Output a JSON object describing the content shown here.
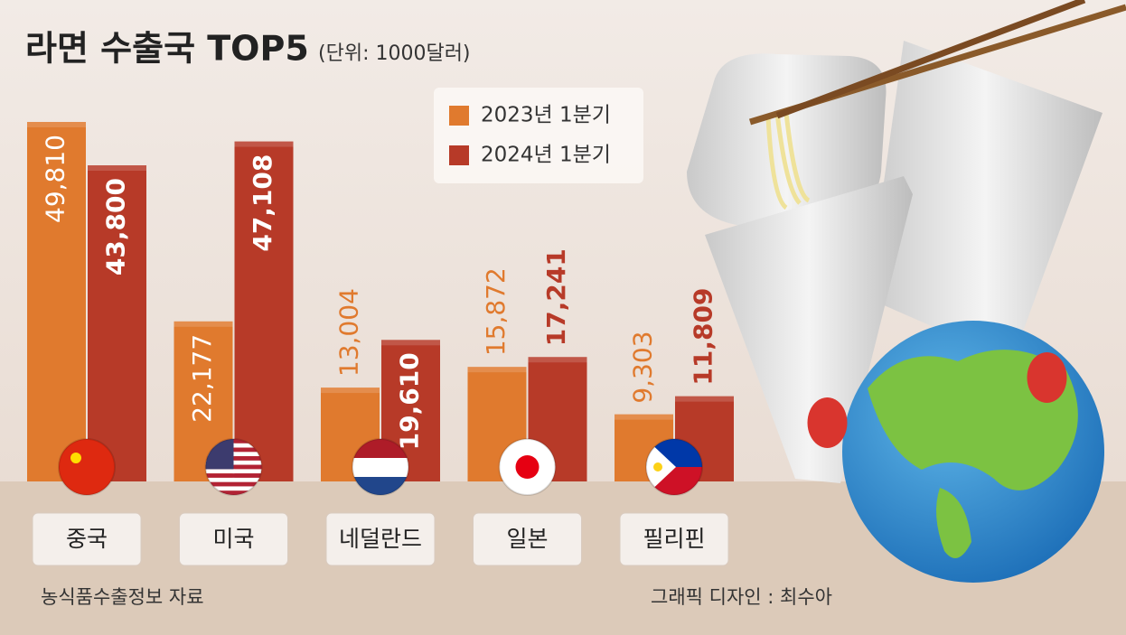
{
  "chart_data": {
    "type": "bar",
    "title": "라면 수출국 TOP5",
    "subtitle": "(단위: 1000달러)",
    "categories": [
      "중국",
      "미국",
      "네덜란드",
      "일본",
      "필리핀"
    ],
    "series": [
      {
        "name": "2023년 1분기",
        "color": "#e07a2e",
        "values": [
          49810,
          22177,
          13004,
          15872,
          9303
        ],
        "value_labels": [
          "49,810",
          "22,177",
          "13,004",
          "15,872",
          "9,303"
        ]
      },
      {
        "name": "2024년 1분기",
        "color": "#b73a28",
        "values": [
          43800,
          47108,
          19610,
          17241,
          11809
        ],
        "value_labels": [
          "43,800",
          "47,108",
          "19,610",
          "17,241",
          "11,809"
        ]
      }
    ],
    "source": "농식품수출정보 자료",
    "credit": "그래픽 디자인 : 최수아"
  }
}
